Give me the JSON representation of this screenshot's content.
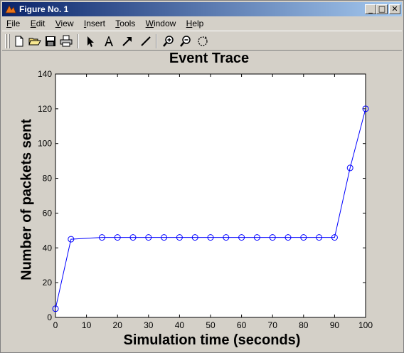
{
  "window": {
    "title": "Figure No. 1",
    "buttons": [
      "_",
      "□",
      "✕"
    ]
  },
  "menu": [
    {
      "label": "File",
      "u": "F"
    },
    {
      "label": "Edit",
      "u": "E"
    },
    {
      "label": "View",
      "u": "V"
    },
    {
      "label": "Insert",
      "u": "I"
    },
    {
      "label": "Tools",
      "u": "T"
    },
    {
      "label": "Window",
      "u": "W"
    },
    {
      "label": "Help",
      "u": "H"
    }
  ],
  "toolbar": [
    "new-file-icon",
    "open-folder-icon",
    "save-icon",
    "print-icon",
    "pointer-icon",
    "text-icon",
    "arrow-icon",
    "line-icon",
    "zoom-in-icon",
    "zoom-out-icon",
    "rotate-icon"
  ],
  "chart_data": {
    "type": "line",
    "title": "Event Trace",
    "xlabel": "Simulation time (seconds)",
    "ylabel": "Number of packets sent",
    "xlim": [
      0,
      100
    ],
    "ylim": [
      0,
      140
    ],
    "xticks": [
      0,
      10,
      20,
      30,
      40,
      50,
      60,
      70,
      80,
      90,
      100
    ],
    "yticks": [
      0,
      20,
      40,
      60,
      80,
      100,
      120,
      140
    ],
    "series": [
      {
        "color": "#0000ff",
        "marker": "circle",
        "x": [
          0,
          5,
          15,
          20,
          25,
          30,
          35,
          40,
          45,
          50,
          55,
          60,
          65,
          70,
          75,
          80,
          85,
          90,
          95,
          100
        ],
        "y": [
          5,
          45,
          46,
          46,
          46,
          46,
          46,
          46,
          46,
          46,
          46,
          46,
          46,
          46,
          46,
          46,
          46,
          46,
          86,
          120
        ]
      }
    ]
  }
}
